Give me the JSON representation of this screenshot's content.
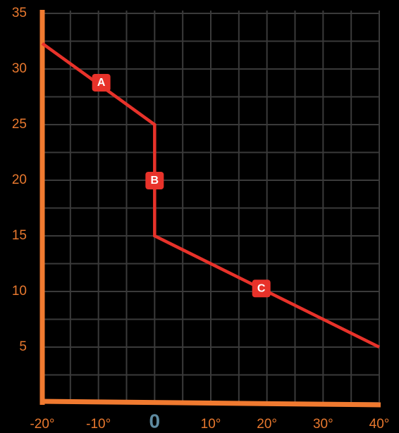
{
  "chart_data": {
    "type": "line",
    "x": [
      -20,
      0,
      0,
      40
    ],
    "values": [
      32.3,
      25,
      15,
      5
    ],
    "color": "#e8322a",
    "axis_color": "#f07a30",
    "tick_color": "#e8782e",
    "zero_label_color": "#5e8aa0",
    "grid_color": "#3a3a3a",
    "xlim": [
      -20,
      40
    ],
    "ylim": [
      0,
      35
    ],
    "xticks": [
      {
        "value": -20,
        "label": "-20°"
      },
      {
        "value": -10,
        "label": "-10°"
      },
      0,
      {
        "value": 10,
        "label": "10°"
      },
      {
        "value": 20,
        "label": "20°"
      },
      {
        "value": 30,
        "label": "30°"
      },
      {
        "value": 40,
        "label": "40°"
      }
    ],
    "yticks": [
      5,
      10,
      15,
      20,
      25,
      30,
      35
    ],
    "xgrid": [
      -20,
      -15,
      -10,
      -5,
      0,
      5,
      10,
      15,
      20,
      25,
      30,
      35,
      40
    ],
    "ygrid": [
      0,
      2.5,
      5,
      7.5,
      10,
      12.5,
      15,
      17.5,
      20,
      22.5,
      25,
      27.5,
      30,
      32.5,
      35
    ],
    "grid": true,
    "annotations": [
      {
        "text": "A",
        "x": -9.5,
        "y": 28.8
      },
      {
        "text": "B",
        "x": 0,
        "y": 20
      },
      {
        "text": "C",
        "x": 19,
        "y": 10.3
      }
    ]
  }
}
